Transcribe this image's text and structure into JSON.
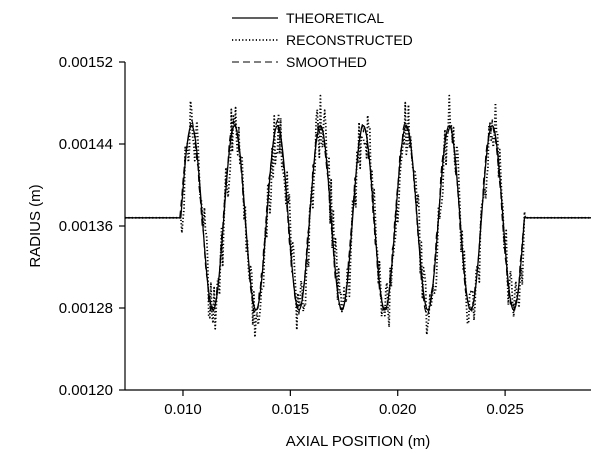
{
  "chart_data": {
    "type": "line",
    "xlabel": "AXIAL POSITION (m)",
    "ylabel": "RADIUS (m)",
    "xlim": [
      0.0073,
      0.029
    ],
    "ylim": [
      0.0012,
      0.00152
    ],
    "xticks": [
      0.01,
      0.015,
      0.02,
      0.025
    ],
    "xtick_labels": [
      "0.010",
      "0.015",
      "0.020",
      "0.025"
    ],
    "yticks": [
      0.0012,
      0.00128,
      0.00136,
      0.00144,
      0.00152
    ],
    "ytick_labels": [
      "0.00120",
      "0.00128",
      "0.00136",
      "0.00144",
      "0.00152"
    ],
    "legend_position": "top-center",
    "grid": false,
    "model": {
      "baseline": 0.001368,
      "amplitude": 9e-05,
      "period": 0.002,
      "start": 0.0099,
      "end": 0.0259,
      "cycles": 8,
      "sample_step": 5e-05
    },
    "series": [
      {
        "name": "THEORETICAL",
        "style": "solid",
        "color": "#000000",
        "noise": 0,
        "phase_shift": 0
      },
      {
        "name": "RECONSTRUCTED",
        "style": "dotted",
        "color": "#000000",
        "noise": 3e-05,
        "phase_shift": 3e-05
      },
      {
        "name": "SMOOTHED",
        "style": "dashed",
        "color": "#000000",
        "noise": 6e-06,
        "phase_shift": -2e-05
      }
    ]
  }
}
